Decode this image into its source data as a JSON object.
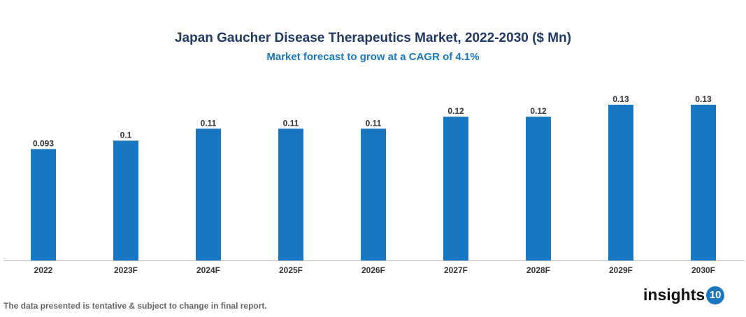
{
  "chart_data": {
    "type": "bar",
    "title": "Japan Gaucher Disease Therapeutics Market, 2022-2030 ($ Mn)",
    "subtitle": "Market forecast to grow at a CAGR of 4.1%",
    "categories": [
      "2022",
      "2023F",
      "2024F",
      "2025F",
      "2026F",
      "2027F",
      "2028F",
      "2029F",
      "2030F"
    ],
    "values": [
      0.093,
      0.1,
      0.11,
      0.11,
      0.11,
      0.12,
      0.12,
      0.13,
      0.13
    ],
    "data_labels": [
      "0.093",
      "0.1",
      "0.11",
      "0.11",
      "0.11",
      "0.12",
      "0.12",
      "0.13",
      "0.13"
    ],
    "xlabel": "",
    "ylabel": "",
    "ylim": [
      0,
      0.13
    ],
    "grid": false,
    "bar_color": "#1777c0"
  },
  "footnote": "The data presented is tentative & subject to change in final report.",
  "logo": {
    "text": "insights",
    "badge": "10"
  }
}
